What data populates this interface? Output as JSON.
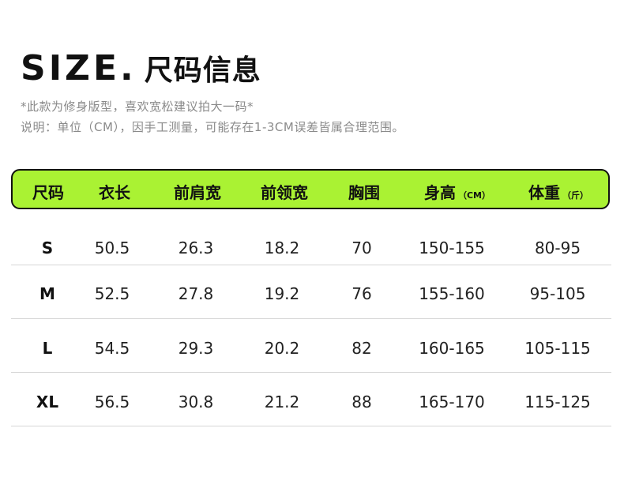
{
  "title": {
    "en": "SIZE.",
    "cn": "尺码信息"
  },
  "notes": [
    "*此款为修身版型，喜欢宽松建议拍大一码*",
    "说明：单位（CM），因手工测量，可能存在1-3CM误差皆属合理范围。"
  ],
  "table": {
    "headers": [
      {
        "label": "尺码",
        "unit": ""
      },
      {
        "label": "衣长",
        "unit": ""
      },
      {
        "label": "前肩宽",
        "unit": ""
      },
      {
        "label": "前领宽",
        "unit": ""
      },
      {
        "label": "胸围",
        "unit": ""
      },
      {
        "label": "身高",
        "unit": "（CM）"
      },
      {
        "label": "体重",
        "unit": "（斤）"
      }
    ],
    "rows": [
      [
        "S",
        "50.5",
        "26.3",
        "18.2",
        "70",
        "150-155",
        "80-95"
      ],
      [
        "M",
        "52.5",
        "27.8",
        "19.2",
        "76",
        "155-160",
        "95-105"
      ],
      [
        "L",
        "54.5",
        "29.3",
        "20.2",
        "82",
        "160-165",
        "105-115"
      ],
      [
        "XL",
        "56.5",
        "30.8",
        "21.2",
        "88",
        "165-170",
        "115-125"
      ]
    ]
  },
  "colors": {
    "header_bg": "#aaf233",
    "border": "#111111",
    "divider": "#d6d6d6",
    "note": "#8a8a8a"
  }
}
